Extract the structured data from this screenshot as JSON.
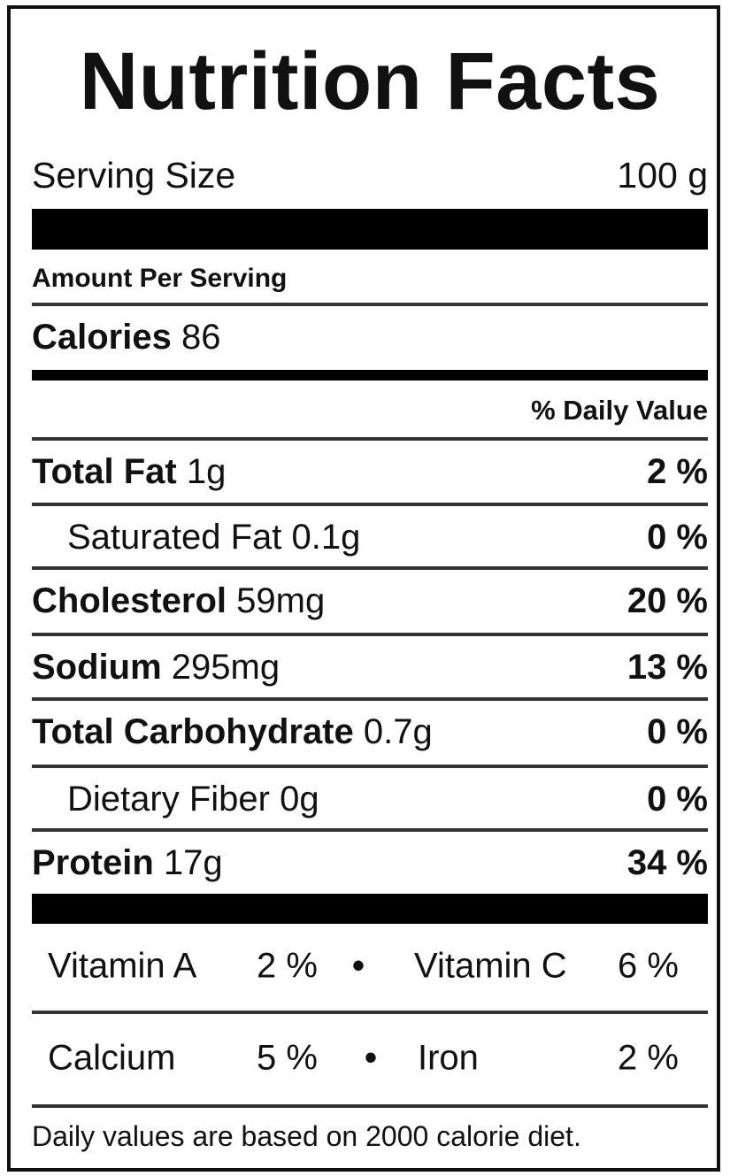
{
  "title": "Nutrition Facts",
  "serving": {
    "label": "Serving Size",
    "value": "100 g"
  },
  "amount_per_serving": "Amount Per Serving",
  "calories": {
    "label": "Calories",
    "value": "86"
  },
  "daily_value_header": "% Daily Value",
  "nutrients": [
    {
      "name": "Total Fat",
      "amount": "1g",
      "dv": "2 %"
    },
    {
      "name": "Saturated Fat",
      "amount": "0.1g",
      "dv": "0 %"
    },
    {
      "name": "Cholesterol",
      "amount": "59mg",
      "dv": "20 %"
    },
    {
      "name": "Sodium",
      "amount": "295mg",
      "dv": "13 %"
    },
    {
      "name": "Total Carbohydrate",
      "amount": "0.7g",
      "dv": "0 %"
    },
    {
      "name": "Dietary Fiber",
      "amount": "0g",
      "dv": "0 %"
    },
    {
      "name": "Protein",
      "amount": "17g",
      "dv": "34 %"
    }
  ],
  "vitamins": {
    "vitamin_a": {
      "label": "Vitamin A",
      "value": "2 %"
    },
    "vitamin_c": {
      "label": "Vitamin C",
      "value": "6 %"
    },
    "calcium": {
      "label": "Calcium",
      "value": "5 %"
    },
    "iron": {
      "label": "Iron",
      "value": "2 %"
    },
    "separator": "•"
  },
  "footnote": "Daily values are based on 2000 calorie diet."
}
